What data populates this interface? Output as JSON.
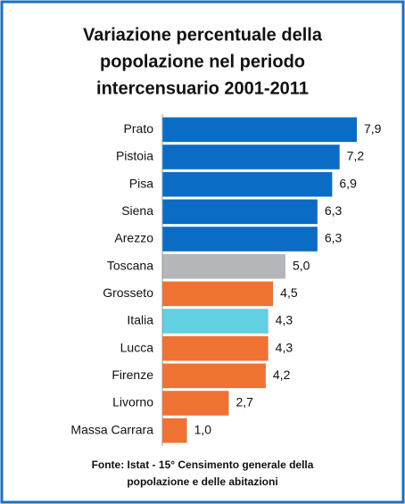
{
  "chart_data": {
    "type": "bar",
    "orientation": "horizontal",
    "title": [
      "Variazione percentuale della",
      "popolazione nel periodo",
      "intercensuario 2001-2011"
    ],
    "categories": [
      "Prato",
      "Pistoia",
      "Pisa",
      "Siena",
      "Arezzo",
      "Toscana",
      "Grosseto",
      "Italia",
      "Lucca",
      "Firenze",
      "Livorno",
      "Massa Carrara"
    ],
    "values": [
      7.9,
      7.2,
      6.9,
      6.3,
      6.3,
      5.0,
      4.5,
      4.3,
      4.3,
      4.2,
      2.7,
      1.0
    ],
    "value_labels": [
      "7,9",
      "7,2",
      "6,9",
      "6,3",
      "6,3",
      "5,0",
      "4,5",
      "4,3",
      "4,3",
      "4,2",
      "2,7",
      "1,0"
    ],
    "colors": [
      "#0a6cc4",
      "#0a6cc4",
      "#0a6cc4",
      "#0a6cc4",
      "#0a6cc4",
      "#b4b6ba",
      "#f07232",
      "#62cfe2",
      "#f07232",
      "#f07232",
      "#f07232",
      "#f07232"
    ],
    "source": [
      "Fonte: Istat - 15° Censimento generale della",
      "popolazione e delle abitazioni"
    ]
  }
}
